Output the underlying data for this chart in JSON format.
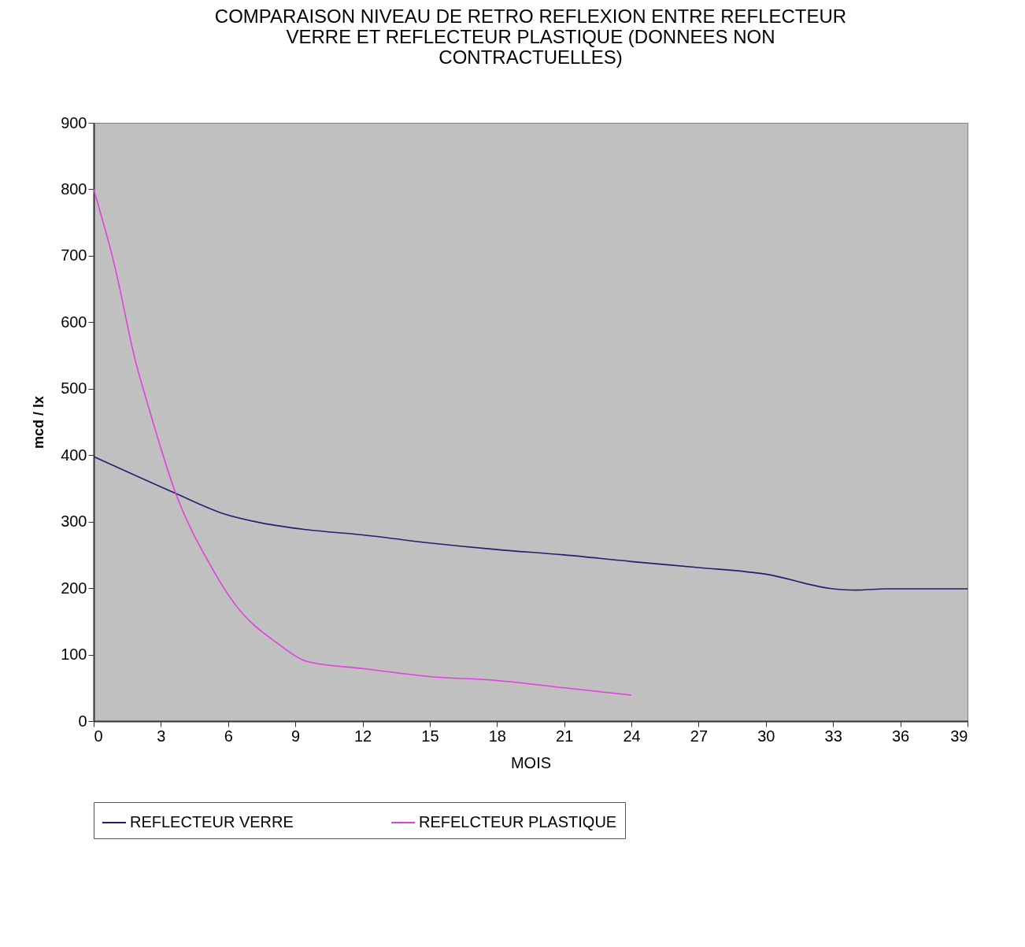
{
  "chart_data": {
    "type": "line",
    "title": "COMPARAISON NIVEAU DE RETRO REFLEXION ENTRE REFLECTEUR VERRE ET REFLECTEUR PLASTIQUE (DONNEES NON CONTRACTUELLES)",
    "xlabel": "MOIS",
    "ylabel": "mcd / lx",
    "series": [
      {
        "name": "REFLECTEUR VERRE",
        "color": "#202070",
        "x": [
          0,
          3.7,
          5.7,
          7.5,
          9.5,
          12,
          15,
          18,
          21,
          24,
          27,
          30,
          33,
          34,
          35.4,
          39
        ],
        "values": [
          398,
          342,
          313,
          298,
          288,
          280,
          268,
          258,
          250,
          240,
          231,
          221,
          199,
          197,
          199,
          199
        ]
      },
      {
        "name": "REFELCTEUR PLASTIQUE",
        "color": "#e040e0",
        "x": [
          0,
          0.9,
          1.9,
          2.4,
          3.7,
          5.2,
          6.3,
          8.2,
          9.6,
          12,
          15,
          18,
          21,
          24
        ],
        "values": [
          800,
          690,
          537,
          478,
          339,
          235,
          176,
          117,
          89,
          79,
          67,
          61,
          50,
          39
        ]
      }
    ],
    "xlim": [
      0,
      39
    ],
    "xticks": [
      0,
      3,
      6,
      9,
      12,
      15,
      18,
      21,
      24,
      27,
      30,
      33,
      36,
      39
    ],
    "ylim": [
      0,
      900
    ],
    "yticks": [
      0,
      100,
      200,
      300,
      400,
      500,
      600,
      700,
      800,
      900
    ],
    "grid": false,
    "legend": "bottom",
    "marker": "none",
    "line_style": "solid"
  }
}
